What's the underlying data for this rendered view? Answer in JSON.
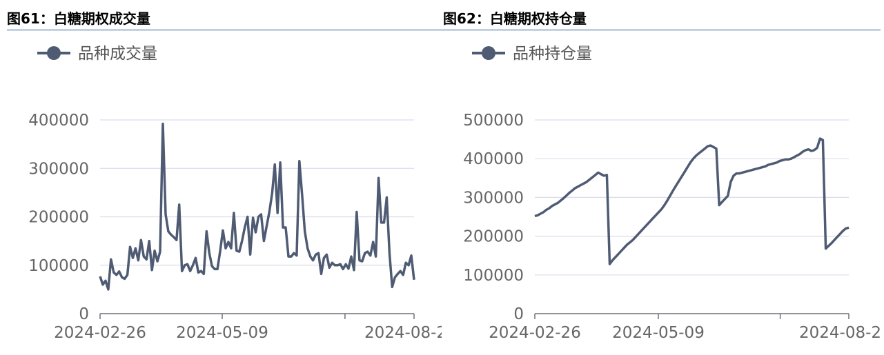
{
  "figures": [
    {
      "title": "图61：白糖期权成交量"
    },
    {
      "title": "图62：白糖期权持仓量"
    }
  ],
  "colors": {
    "series": "#4e5b73",
    "grid": "#dcdcea",
    "axis": "#6e7079",
    "title_rule": "#1f5a96"
  },
  "chart_data": [
    {
      "type": "line",
      "legend": {
        "entries": [
          "品种成交量"
        ],
        "placement": "top-left",
        "icon": "line-circle-icon"
      },
      "xlabel": "",
      "ylabel": "",
      "x_ticks": [
        "2024-02-26",
        "2024-05-09",
        "2024-08-2"
      ],
      "y_ticks": [
        "0",
        "100000",
        "200000",
        "300000",
        "400000"
      ],
      "ylim": [
        0,
        400000
      ],
      "grid": true,
      "series": [
        {
          "name": "品种成交量",
          "values": [
            77000,
            60000,
            68000,
            50000,
            112000,
            85000,
            80000,
            87000,
            75000,
            72000,
            80000,
            138000,
            115000,
            135000,
            110000,
            152000,
            118000,
            112000,
            150000,
            90000,
            130000,
            108000,
            128000,
            392000,
            205000,
            170000,
            163000,
            158000,
            152000,
            225000,
            88000,
            100000,
            102000,
            88000,
            100000,
            115000,
            85000,
            88000,
            82000,
            170000,
            125000,
            98000,
            92000,
            92000,
            130000,
            172000,
            135000,
            148000,
            135000,
            208000,
            130000,
            128000,
            150000,
            178000,
            200000,
            122000,
            198000,
            168000,
            200000,
            205000,
            150000,
            180000,
            210000,
            248000,
            308000,
            208000,
            312000,
            178000,
            178000,
            118000,
            118000,
            125000,
            120000,
            315000,
            245000,
            170000,
            135000,
            118000,
            110000,
            122000,
            125000,
            82000,
            115000,
            122000,
            95000,
            105000,
            100000,
            100000,
            102000,
            92000,
            102000,
            93000,
            118000,
            90000,
            210000,
            110000,
            108000,
            125000,
            128000,
            120000,
            148000,
            118000,
            280000,
            188000,
            188000,
            240000,
            125000,
            55000,
            75000,
            82000,
            88000,
            80000,
            105000,
            100000,
            120000,
            70000
          ]
        }
      ]
    },
    {
      "type": "line",
      "legend": {
        "entries": [
          "品种持仓量"
        ],
        "placement": "top-left",
        "icon": "line-circle-icon"
      },
      "xlabel": "",
      "ylabel": "",
      "x_ticks": [
        "2024-02-26",
        "2024-05-09",
        "2024-08-2"
      ],
      "y_ticks": [
        "0",
        "100000",
        "200000",
        "300000",
        "400000",
        "500000"
      ],
      "ylim": [
        0,
        500000
      ],
      "grid": true,
      "series": [
        {
          "name": "品种持仓量",
          "values": [
            252000,
            254000,
            258000,
            262000,
            268000,
            272000,
            278000,
            282000,
            286000,
            292000,
            298000,
            305000,
            312000,
            318000,
            324000,
            328000,
            332000,
            336000,
            340000,
            346000,
            352000,
            358000,
            364000,
            360000,
            356000,
            358000,
            128000,
            138000,
            146000,
            154000,
            162000,
            170000,
            178000,
            184000,
            190000,
            198000,
            206000,
            214000,
            222000,
            230000,
            238000,
            246000,
            254000,
            262000,
            270000,
            280000,
            292000,
            305000,
            318000,
            330000,
            342000,
            354000,
            366000,
            378000,
            390000,
            400000,
            408000,
            414000,
            420000,
            426000,
            432000,
            434000,
            430000,
            426000,
            280000,
            288000,
            296000,
            304000,
            340000,
            356000,
            362000,
            362000,
            364000,
            366000,
            368000,
            370000,
            372000,
            374000,
            376000,
            378000,
            380000,
            384000,
            386000,
            388000,
            390000,
            394000,
            396000,
            398000,
            398000,
            400000,
            404000,
            408000,
            412000,
            418000,
            422000,
            424000,
            420000,
            422000,
            428000,
            452000,
            448000,
            168000,
            175000,
            182000,
            190000,
            198000,
            206000,
            214000,
            220000,
            222000
          ]
        }
      ]
    }
  ]
}
